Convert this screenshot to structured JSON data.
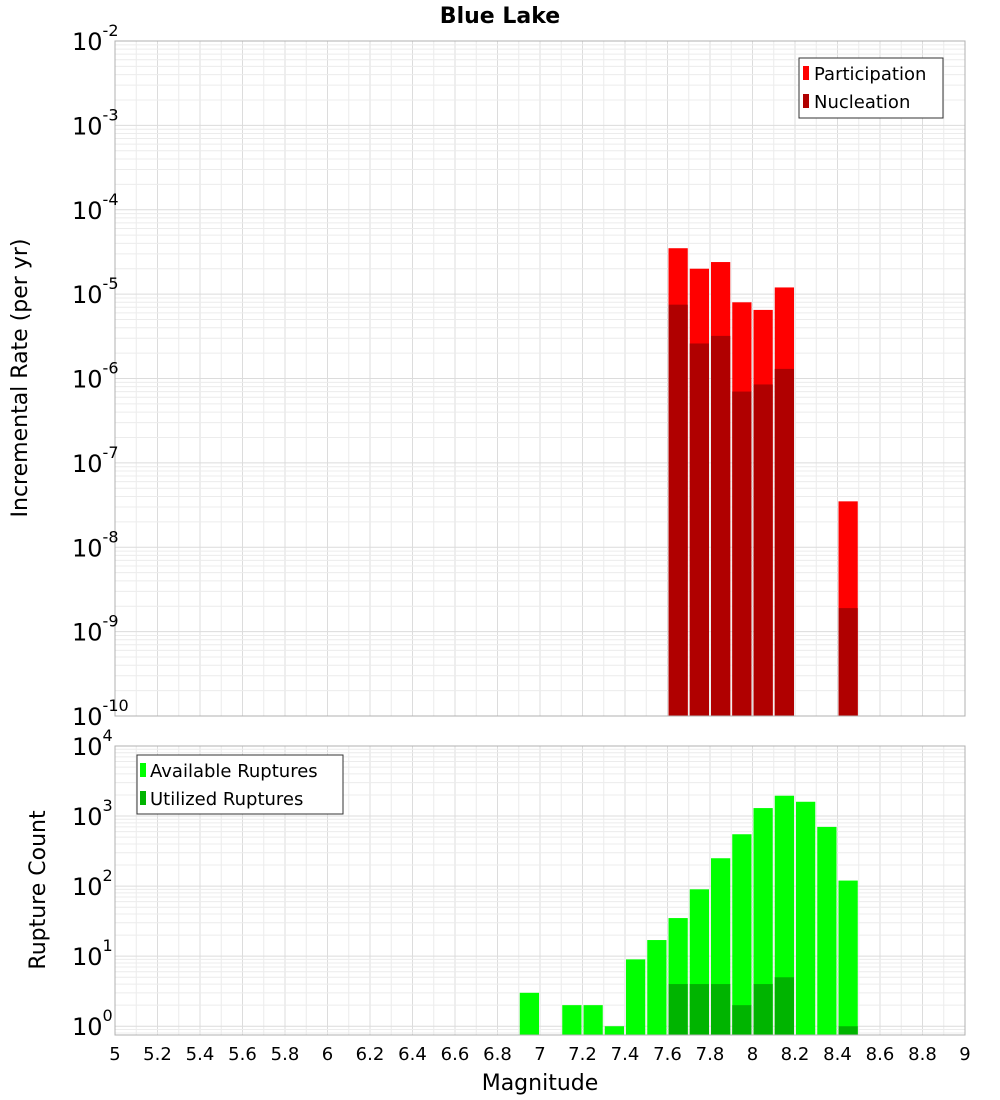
{
  "title": "Blue Lake",
  "xlabel": "Magnitude",
  "x_ticks": [
    "5",
    "5.2",
    "5.4",
    "5.6",
    "5.8",
    "6",
    "6.2",
    "6.4",
    "6.6",
    "6.8",
    "7",
    "7.2",
    "7.4",
    "7.6",
    "7.8",
    "8",
    "8.2",
    "8.4",
    "8.6",
    "8.8",
    "9"
  ],
  "colors": {
    "participation": "#ff0000",
    "nucleation": "#b00000",
    "available": "#00ff00",
    "utilized": "#00b400"
  },
  "chart_data": [
    {
      "type": "bar",
      "ylabel": "Incremental Rate (per yr)",
      "yscale": "log",
      "xlim": [
        5,
        9
      ],
      "ylim": [
        1e-10,
        0.01
      ],
      "y_ticks": [
        {
          "base": "10",
          "exp": "-2"
        },
        {
          "base": "10",
          "exp": "-3"
        },
        {
          "base": "10",
          "exp": "-4"
        },
        {
          "base": "10",
          "exp": "-5"
        },
        {
          "base": "10",
          "exp": "-6"
        },
        {
          "base": "10",
          "exp": "-7"
        },
        {
          "base": "10",
          "exp": "-8"
        },
        {
          "base": "10",
          "exp": "-9"
        },
        {
          "base": "10",
          "exp": "-10"
        }
      ],
      "grid": true,
      "legend": "top-right",
      "x": [
        7.65,
        7.75,
        7.85,
        7.95,
        8.05,
        8.15,
        8.45
      ],
      "series": [
        {
          "name": "Participation",
          "values": [
            3.5e-05,
            2e-05,
            2.4e-05,
            8e-06,
            6.5e-06,
            1.2e-05,
            3.5e-08
          ]
        },
        {
          "name": "Nucleation",
          "values": [
            7.5e-06,
            2.6e-06,
            3.2e-06,
            7e-07,
            8.5e-07,
            1.3e-06,
            1.9e-09
          ]
        }
      ]
    },
    {
      "type": "bar",
      "ylabel": "Rupture Count",
      "yscale": "log",
      "xlim": [
        5,
        9
      ],
      "ylim": [
        0.75,
        10000
      ],
      "y_ticks": [
        {
          "base": "10",
          "exp": "4"
        },
        {
          "base": "10",
          "exp": "3"
        },
        {
          "base": "10",
          "exp": "2"
        },
        {
          "base": "10",
          "exp": "1"
        },
        {
          "base": "10",
          "exp": "0"
        }
      ],
      "grid": true,
      "legend": "top-left",
      "x": [
        6.95,
        7.15,
        7.25,
        7.35,
        7.45,
        7.55,
        7.65,
        7.75,
        7.85,
        7.95,
        8.05,
        8.15,
        8.25,
        8.35,
        8.45
      ],
      "series": [
        {
          "name": "Available Ruptures",
          "values": [
            3,
            2,
            2,
            1,
            9,
            17,
            35,
            90,
            250,
            550,
            1300,
            1950,
            1600,
            700,
            120
          ]
        },
        {
          "name": "Utilized Ruptures",
          "values": [
            0,
            0,
            0,
            0,
            0,
            0,
            4,
            4,
            4,
            2,
            4,
            5,
            0,
            0,
            1
          ]
        }
      ]
    }
  ]
}
